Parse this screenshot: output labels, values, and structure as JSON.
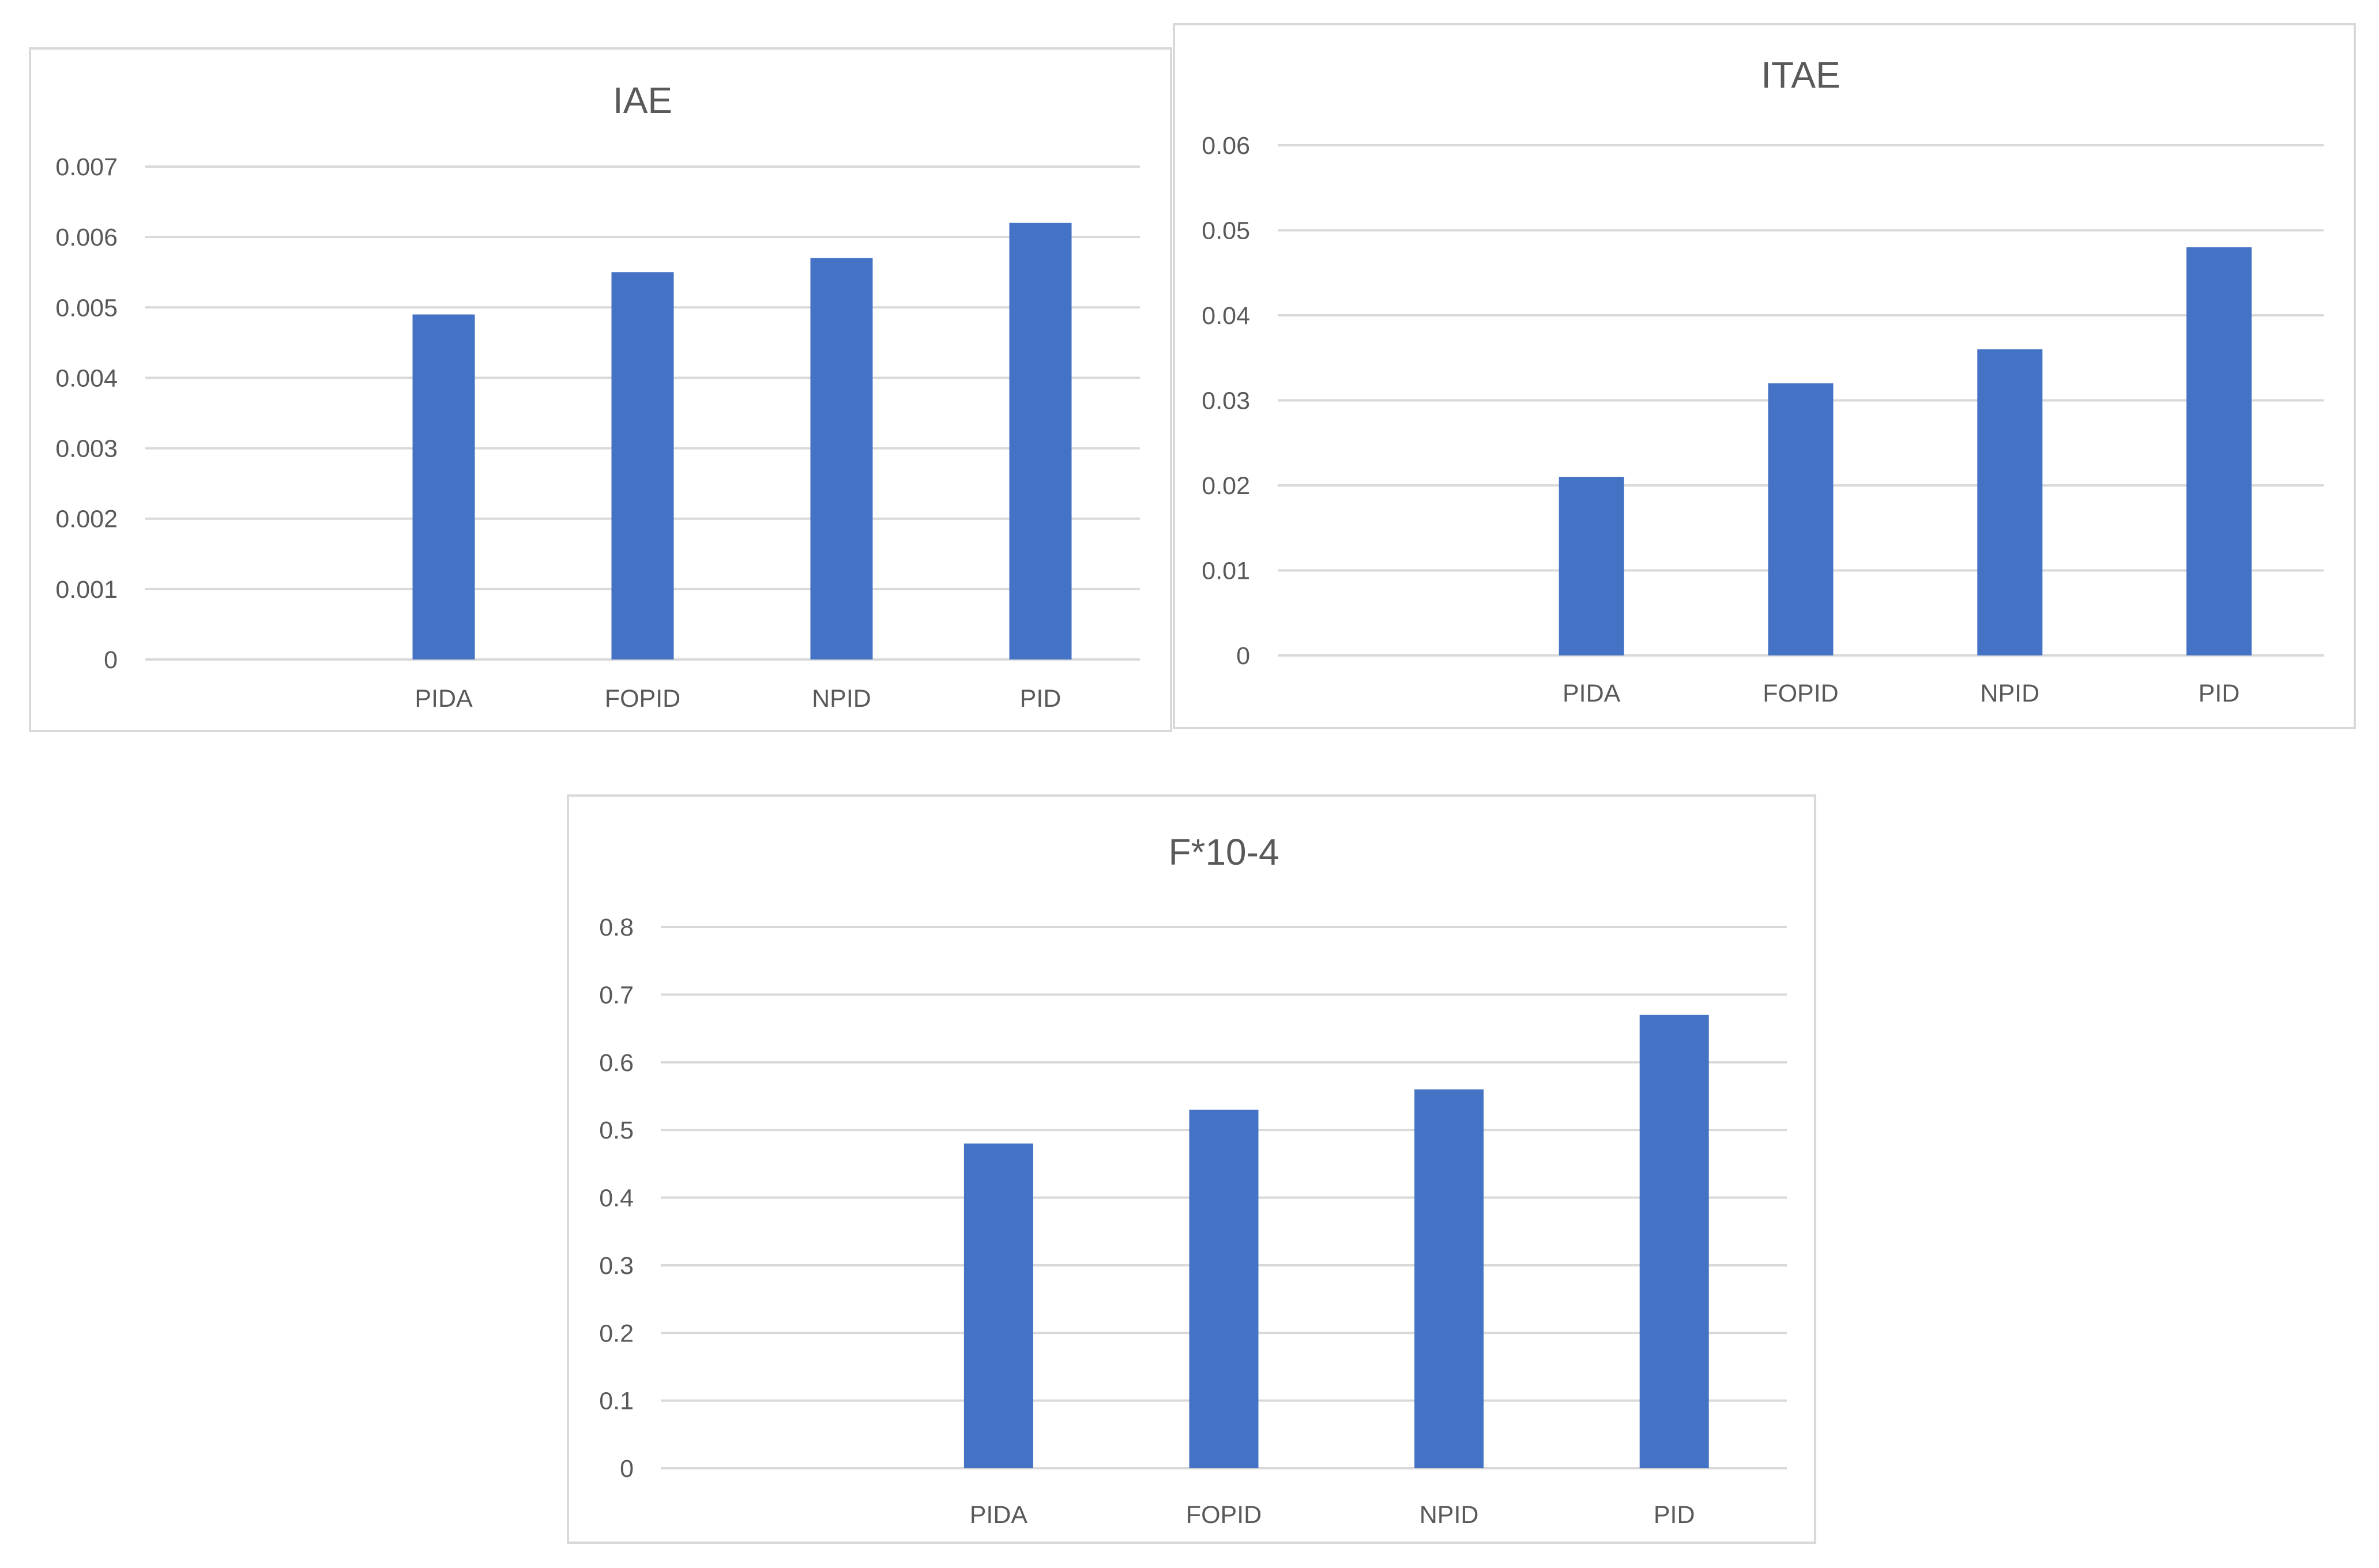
{
  "chart_data": [
    {
      "type": "bar",
      "title": "IAE",
      "categories": [
        "",
        "PIDA",
        "FOPID",
        "NPID",
        "PID"
      ],
      "values": [
        null,
        0.0049,
        0.0055,
        0.0057,
        0.0062
      ],
      "ylim": [
        0,
        0.007
      ],
      "yticks": [
        "0",
        "0.001",
        "0.002",
        "0.003",
        "0.004",
        "0.005",
        "0.006",
        "0.007"
      ],
      "grid": true,
      "color": "#4472c4"
    },
    {
      "type": "bar",
      "title": "ITAE",
      "categories": [
        "",
        "PIDA",
        "FOPID",
        "NPID",
        "PID"
      ],
      "values": [
        null,
        0.021,
        0.032,
        0.036,
        0.048
      ],
      "ylim": [
        0,
        0.06
      ],
      "yticks": [
        "0",
        "0.01",
        "0.02",
        "0.03",
        "0.04",
        "0.05",
        "0.06"
      ],
      "grid": true,
      "color": "#4472c4"
    },
    {
      "type": "bar",
      "title": "F*10-4",
      "categories": [
        "",
        "PIDA",
        "FOPID",
        "NPID",
        "PID"
      ],
      "values": [
        null,
        0.48,
        0.53,
        0.56,
        0.67
      ],
      "ylim": [
        0,
        0.8
      ],
      "yticks": [
        "0",
        "0.1",
        "0.2",
        "0.3",
        "0.4",
        "0.5",
        "0.6",
        "0.7",
        "0.8"
      ],
      "grid": true,
      "color": "#4472c4"
    }
  ]
}
